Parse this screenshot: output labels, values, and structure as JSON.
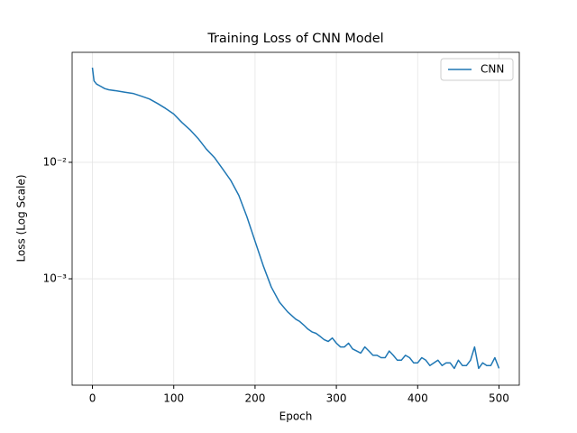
{
  "chart_data": {
    "type": "line",
    "title": "Training Loss of CNN Model",
    "x_label": "Epoch",
    "y_label": "Loss (Log Scale)",
    "x": [
      0,
      2,
      5,
      10,
      15,
      20,
      30,
      40,
      50,
      60,
      70,
      80,
      90,
      100,
      110,
      120,
      130,
      140,
      150,
      160,
      170,
      180,
      190,
      200,
      210,
      220,
      230,
      240,
      250,
      255,
      260,
      265,
      270,
      275,
      280,
      285,
      290,
      295,
      300,
      305,
      310,
      315,
      320,
      325,
      330,
      335,
      340,
      345,
      350,
      355,
      360,
      365,
      370,
      375,
      380,
      385,
      390,
      395,
      400,
      405,
      410,
      415,
      420,
      425,
      430,
      435,
      440,
      445,
      450,
      455,
      460,
      465,
      470,
      475,
      480,
      485,
      490,
      495,
      500
    ],
    "series": [
      {
        "name": "CNN",
        "color": "#1f77b4",
        "values": [
          0.065,
          0.05,
          0.047,
          0.045,
          0.043,
          0.042,
          0.041,
          0.04,
          0.039,
          0.037,
          0.035,
          0.032,
          0.029,
          0.026,
          0.022,
          0.019,
          0.016,
          0.013,
          0.011,
          0.0088,
          0.007,
          0.0052,
          0.0034,
          0.0021,
          0.0013,
          0.00085,
          0.00063,
          0.00052,
          0.00045,
          0.00043,
          0.0004,
          0.00037,
          0.00035,
          0.00034,
          0.00032,
          0.0003,
          0.00029,
          0.00031,
          0.00028,
          0.00026,
          0.00026,
          0.00028,
          0.00025,
          0.00024,
          0.00023,
          0.00026,
          0.00024,
          0.00022,
          0.00022,
          0.00021,
          0.00021,
          0.00024,
          0.00022,
          0.0002,
          0.0002,
          0.00022,
          0.00021,
          0.00019,
          0.00019,
          0.00021,
          0.0002,
          0.00018,
          0.00019,
          0.0002,
          0.00018,
          0.00019,
          0.00019,
          0.00017,
          0.0002,
          0.00018,
          0.00018,
          0.0002,
          0.00026,
          0.00017,
          0.00019,
          0.00018,
          0.00018,
          0.00021,
          0.00017
        ]
      }
    ],
    "xlim": [
      -25,
      525
    ],
    "xticks": [
      0,
      100,
      200,
      300,
      400,
      500
    ],
    "ylim": [
      0.000122,
      0.088
    ],
    "yticks": [
      {
        "value": 0.001,
        "label": "10⁻³"
      },
      {
        "value": 0.01,
        "label": "10⁻²"
      }
    ],
    "log_y": true,
    "grid": true,
    "legend": "upper right"
  }
}
